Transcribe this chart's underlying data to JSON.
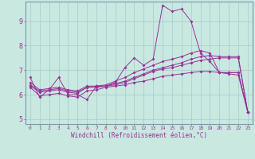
{
  "title": "",
  "xlabel": "Windchill (Refroidissement éolien,°C)",
  "bg_color": "#c8e8e0",
  "line_color": "#993399",
  "grid_color": "#a0cccc",
  "xlim": [
    -0.5,
    23.5
  ],
  "ylim": [
    4.8,
    9.8
  ],
  "yticks": [
    5,
    6,
    7,
    8,
    9
  ],
  "xticks": [
    0,
    1,
    2,
    3,
    4,
    5,
    6,
    7,
    8,
    9,
    10,
    11,
    12,
    13,
    14,
    15,
    16,
    17,
    18,
    19,
    20,
    21,
    22,
    23
  ],
  "series": [
    {
      "x": [
        0,
        1,
        2,
        3,
        4,
        5,
        6,
        7,
        8,
        9,
        10,
        11,
        12,
        13,
        14,
        15,
        16,
        17,
        18,
        19,
        20,
        21,
        22,
        23
      ],
      "y": [
        6.7,
        5.9,
        6.2,
        6.7,
        6.0,
        6.0,
        5.8,
        6.35,
        6.35,
        6.5,
        7.1,
        7.5,
        7.2,
        7.45,
        9.65,
        9.4,
        9.5,
        9.0,
        7.7,
        7.35,
        6.9,
        6.9,
        6.9,
        5.3
      ]
    },
    {
      "x": [
        0,
        1,
        2,
        3,
        4,
        5,
        6,
        7,
        8,
        9,
        10,
        11,
        12,
        13,
        14,
        15,
        16,
        17,
        18,
        19,
        20,
        21,
        22,
        23
      ],
      "y": [
        6.5,
        6.2,
        6.25,
        6.3,
        6.2,
        6.15,
        6.35,
        6.35,
        6.4,
        6.55,
        6.7,
        6.9,
        7.05,
        7.2,
        7.35,
        7.45,
        7.55,
        7.7,
        7.8,
        7.7,
        6.9,
        6.9,
        6.9,
        5.3
      ]
    },
    {
      "x": [
        0,
        1,
        2,
        3,
        4,
        5,
        6,
        7,
        8,
        9,
        10,
        11,
        12,
        13,
        14,
        15,
        16,
        17,
        18,
        19,
        20,
        21,
        22,
        23
      ],
      "y": [
        6.4,
        6.15,
        6.2,
        6.25,
        6.15,
        6.1,
        6.3,
        6.35,
        6.35,
        6.45,
        6.55,
        6.7,
        6.85,
        7.0,
        7.1,
        7.2,
        7.3,
        7.45,
        7.55,
        7.6,
        7.55,
        7.55,
        7.55,
        5.3
      ]
    },
    {
      "x": [
        0,
        1,
        2,
        3,
        4,
        5,
        6,
        7,
        8,
        9,
        10,
        11,
        12,
        13,
        14,
        15,
        16,
        17,
        18,
        19,
        20,
        21,
        22,
        23
      ],
      "y": [
        6.35,
        6.1,
        6.15,
        6.2,
        6.1,
        6.05,
        6.3,
        6.3,
        6.35,
        6.4,
        6.5,
        6.65,
        6.8,
        6.95,
        7.05,
        7.1,
        7.2,
        7.3,
        7.4,
        7.45,
        7.5,
        7.5,
        7.5,
        5.3
      ]
    },
    {
      "x": [
        0,
        1,
        2,
        3,
        4,
        5,
        6,
        7,
        8,
        9,
        10,
        11,
        12,
        13,
        14,
        15,
        16,
        17,
        18,
        19,
        20,
        21,
        22,
        23
      ],
      "y": [
        6.3,
        5.95,
        6.0,
        6.05,
        5.95,
        5.9,
        6.15,
        6.2,
        6.3,
        6.35,
        6.4,
        6.5,
        6.55,
        6.65,
        6.75,
        6.8,
        6.85,
        6.9,
        6.95,
        6.95,
        6.9,
        6.85,
        6.8,
        5.3
      ]
    }
  ]
}
